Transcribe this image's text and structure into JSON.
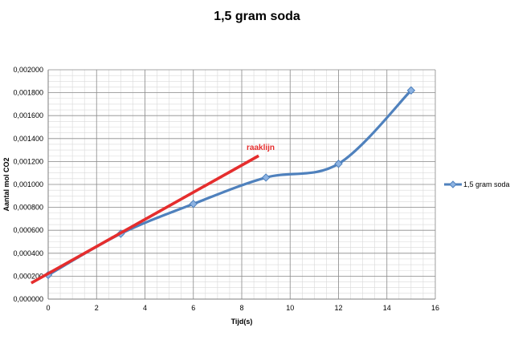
{
  "chart_data": {
    "type": "scatter",
    "title": "1,5 gram soda",
    "xlabel": "Tijd(s)",
    "ylabel": "Aantal mol CO2",
    "xlim": [
      0,
      16
    ],
    "ylim": [
      0,
      0.002
    ],
    "x_ticks": [
      "0",
      "2",
      "4",
      "6",
      "8",
      "10",
      "12",
      "14",
      "16"
    ],
    "y_ticks": [
      "0,000000",
      "0,000200",
      "0,000400",
      "0,000600",
      "0,000800",
      "0,001000",
      "0,001200",
      "0,001400",
      "0,001600",
      "0,001800",
      "0,002000"
    ],
    "grid": true,
    "legend_position": "right",
    "series": [
      {
        "name": "1,5 gram soda",
        "color": "#4f81bd",
        "smooth": true,
        "x": [
          0,
          3,
          6,
          9,
          12,
          15
        ],
        "y": [
          0.00021,
          0.00057,
          0.00083,
          0.00106,
          0.00118,
          0.00182
        ]
      }
    ],
    "tangent_line": {
      "label": "raaklijn",
      "color": "#e52d2d",
      "x": [
        -0.7,
        8.7
      ],
      "y": [
        0.00014,
        0.00125
      ]
    }
  }
}
